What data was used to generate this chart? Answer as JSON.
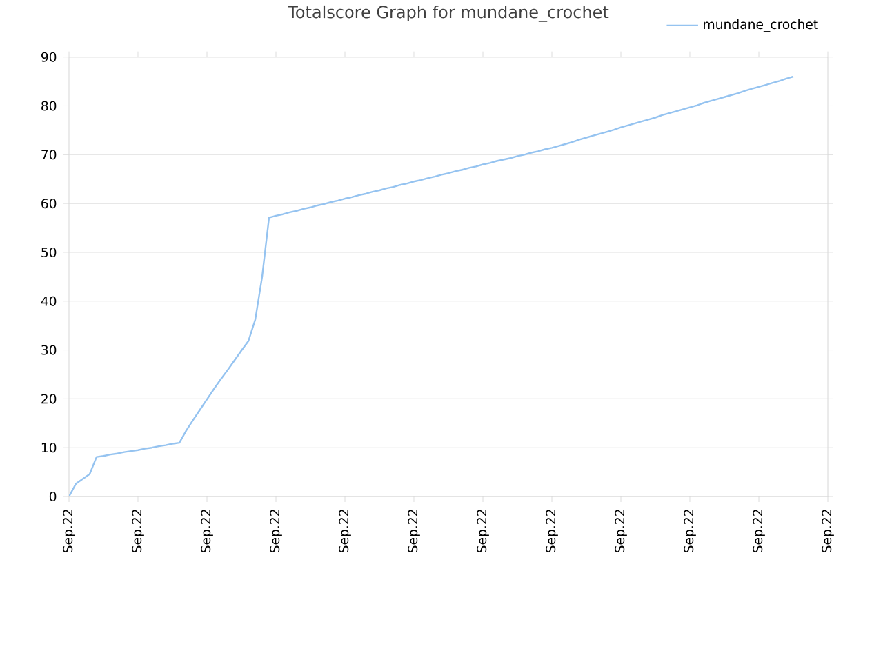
{
  "chart_data": {
    "type": "line",
    "title": "Totalscore Graph for mundane_crochet",
    "categories": [
      "Sep.22",
      null,
      null,
      null,
      null,
      null,
      null,
      null,
      null,
      null,
      "Sep.22",
      null,
      null,
      null,
      null,
      null,
      null,
      null,
      null,
      null,
      "Sep.22",
      null,
      null,
      null,
      null,
      null,
      null,
      null,
      null,
      null,
      "Sep.22",
      null,
      null,
      null,
      null,
      null,
      null,
      null,
      null,
      null,
      "Sep.22",
      null,
      null,
      null,
      null,
      null,
      null,
      null,
      null,
      null,
      "Sep.22",
      null,
      null,
      null,
      null,
      null,
      null,
      null,
      null,
      null,
      "Sep.22",
      null,
      null,
      null,
      null,
      null,
      null,
      null,
      null,
      null,
      "Sep.22",
      null,
      null,
      null,
      null,
      null,
      null,
      null,
      null,
      null,
      "Sep.22",
      null,
      null,
      null,
      null,
      null,
      null,
      null,
      null,
      null,
      "Sep.22",
      null,
      null,
      null,
      null,
      null,
      null,
      null,
      null,
      null,
      "Sep.22",
      null,
      null,
      null,
      null,
      null,
      null,
      null,
      null,
      null,
      "Sep.22"
    ],
    "series": [
      {
        "name": "mundane_crochet",
        "color": "#95c3f0",
        "values": [
          0,
          2.6,
          3.6,
          4.6,
          8.1,
          8.3,
          8.6,
          8.8,
          9.1,
          9.3,
          9.5,
          9.8,
          10.0,
          10.3,
          10.5,
          10.8,
          11.0,
          13.5,
          15.7,
          17.8,
          19.9,
          22,
          24.0,
          25.9,
          27.9,
          29.9,
          31.8,
          36.2,
          45,
          57.1,
          57.5,
          57.8,
          58.2,
          58.5,
          58.9,
          59.2,
          59.6,
          59.9,
          60.3,
          60.6,
          61.0,
          61.3,
          61.7,
          62.0,
          62.4,
          62.7,
          63.1,
          63.4,
          63.8,
          64.1,
          64.5,
          64.8,
          65.2,
          65.5,
          65.9,
          66.2,
          66.6,
          66.9,
          67.3,
          67.6,
          68.0,
          68.3,
          68.7,
          69.0,
          69.3,
          69.7,
          70.0,
          70.4,
          70.7,
          71.1,
          71.4,
          71.8,
          72.2,
          72.6,
          73.1,
          73.5,
          73.9,
          74.3,
          74.7,
          75.1,
          75.6,
          76.0,
          76.4,
          76.8,
          77.2,
          77.6,
          78.1,
          78.5,
          78.9,
          79.3,
          79.7,
          80.1,
          80.6,
          81.0,
          81.4,
          81.8,
          82.2,
          82.6,
          83.1,
          83.5,
          83.9,
          84.3,
          84.7,
          85.1,
          85.6,
          86.0,
          null,
          null,
          null,
          null,
          null
        ]
      }
    ],
    "ylim": [
      0,
      90
    ],
    "yticks": [
      0,
      10,
      20,
      30,
      40,
      50,
      60,
      70,
      80,
      90
    ],
    "grid": "y",
    "legend": "top right",
    "marker": "none",
    "line_style": "solid"
  }
}
